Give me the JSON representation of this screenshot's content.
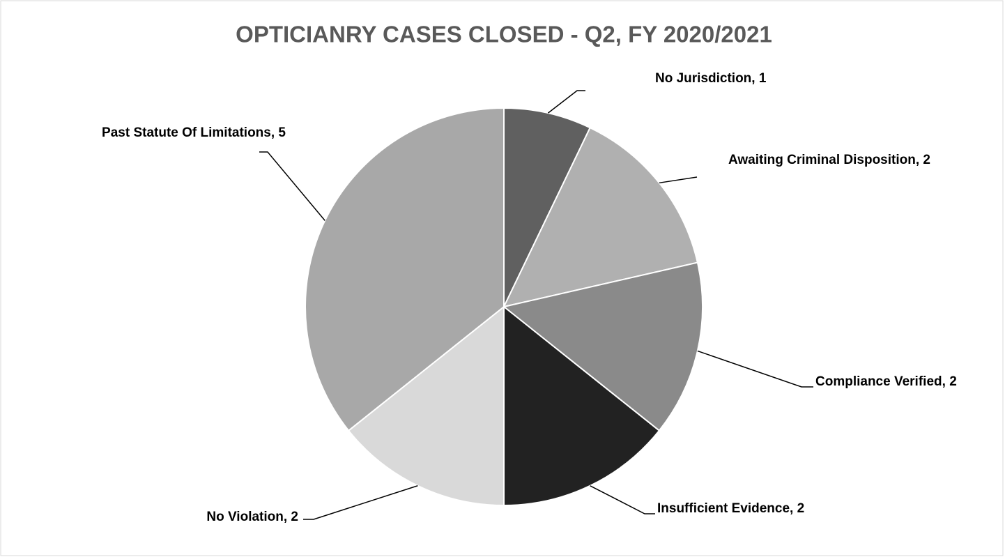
{
  "chart_data": {
    "type": "pie",
    "title": "OPTICIANRY CASES CLOSED - Q2, FY 2020/2021",
    "categories": [
      "No Jurisdiction",
      "Awaiting Criminal Disposition",
      "Compliance Verified",
      "Insufficient Evidence",
      "No Violation",
      "Past Statute Of Limitations"
    ],
    "values": [
      1,
      2,
      2,
      2,
      2,
      5
    ],
    "colors": [
      "#606060",
      "#b0b0b0",
      "#8a8a8a",
      "#222222",
      "#d9d9d9",
      "#a8a8a8"
    ],
    "label_separator": ", "
  }
}
